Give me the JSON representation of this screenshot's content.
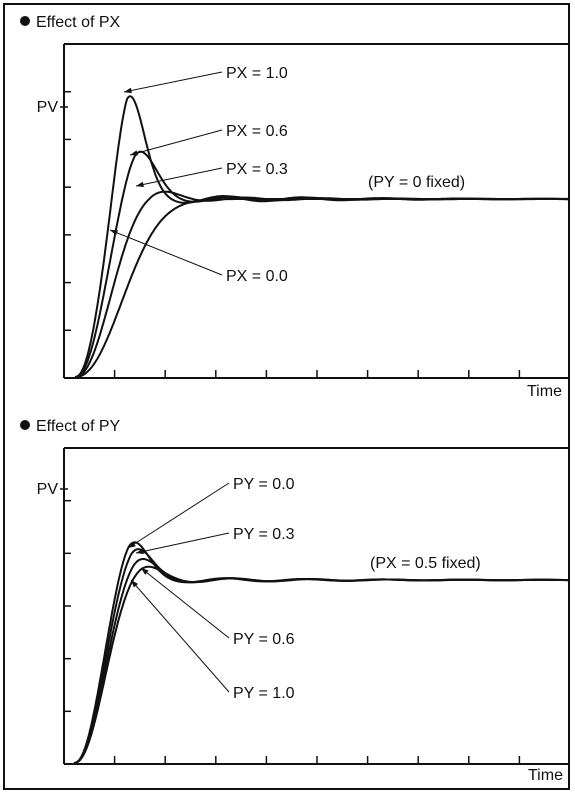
{
  "chart_data": [
    {
      "type": "line",
      "title": "Effect of PX",
      "ylabel": "PV",
      "xlabel": "Time",
      "note": "(PY = 0 fixed)",
      "x_ticks": 10,
      "y_ticks": 7,
      "series": [
        {
          "name": "PX = 1.0",
          "peak": 1.62,
          "peak_time": 1.0,
          "overshoot_lines": true
        },
        {
          "name": "PX = 0.6",
          "peak": 1.3,
          "peak_time": 1.15
        },
        {
          "name": "PX = 0.3",
          "peak": 1.05,
          "peak_time": 1.4
        },
        {
          "name": "PX = 0.0",
          "peak": 1.0,
          "peak_time": 1.9
        }
      ]
    },
    {
      "type": "line",
      "title": "Effect of PY",
      "ylabel": "PV",
      "xlabel": "Time",
      "note": "(PX = 0.5 fixed)",
      "x_ticks": 10,
      "y_ticks": 6,
      "series": [
        {
          "name": "PY = 0.0",
          "peak": 1.24,
          "peak_time": 1.05
        },
        {
          "name": "PY = 0.3",
          "peak": 1.2,
          "peak_time": 1.1
        },
        {
          "name": "PY = 0.6",
          "peak": 1.14,
          "peak_time": 1.15
        },
        {
          "name": "PY = 1.0",
          "peak": 1.09,
          "peak_time": 1.2
        }
      ]
    }
  ]
}
